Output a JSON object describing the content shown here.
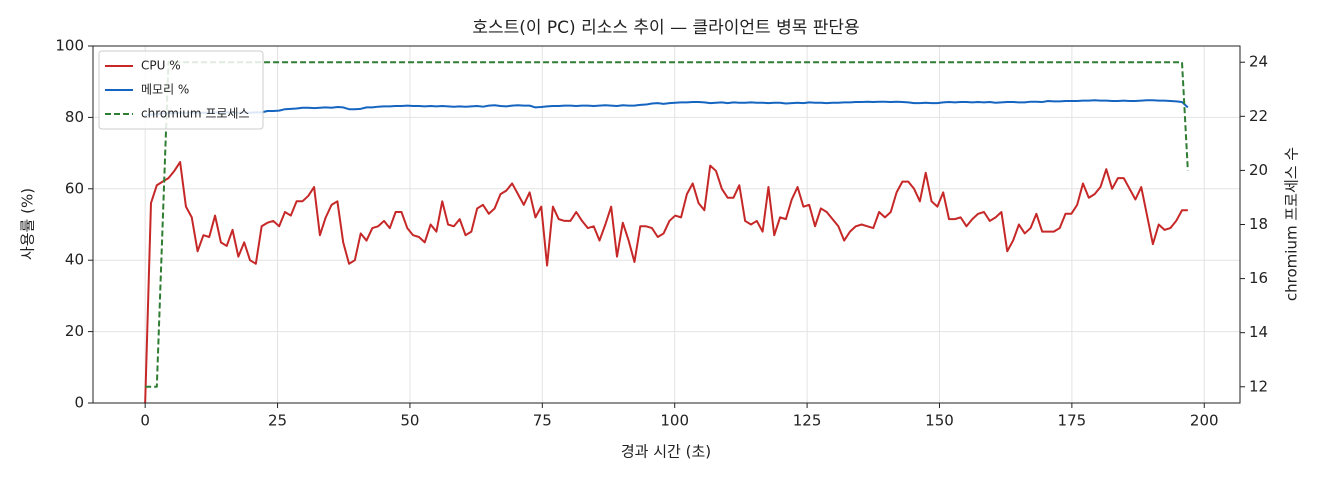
{
  "chart_data": {
    "type": "line",
    "title": "호스트(이 PC) 리소스 추이 — 클라이언트 병목 판단용",
    "x_label": "경과 시간 (초)",
    "y_label": "사용률 (%)",
    "y2_label": "chromium 프로세스 수",
    "x": [
      0,
      1.1,
      2.2,
      3.3,
      4.4,
      5.5,
      6.6,
      7.7,
      8.8,
      9.9,
      11,
      12.1,
      13.2,
      14.3,
      15.4,
      16.5,
      17.6,
      18.7,
      19.8,
      20.9,
      22,
      23.1,
      24.2,
      25.3,
      26.4,
      27.5,
      28.6,
      29.7,
      30.8,
      31.9,
      33,
      34.1,
      35.2,
      36.3,
      37.4,
      38.5,
      39.6,
      40.7,
      41.8,
      42.9,
      44,
      45.1,
      46.2,
      47.3,
      48.4,
      49.5,
      50.6,
      51.7,
      52.8,
      53.9,
      55,
      56.1,
      57.2,
      58.3,
      59.4,
      60.5,
      61.6,
      62.7,
      63.8,
      64.9,
      66,
      67.1,
      68.2,
      69.3,
      70.4,
      71.5,
      72.6,
      73.7,
      74.8,
      75.9,
      77,
      78.1,
      79.2,
      80.3,
      81.4,
      82.5,
      83.6,
      84.7,
      85.8,
      86.9,
      88,
      89.1,
      90.2,
      91.3,
      92.4,
      93.5,
      94.6,
      95.7,
      96.8,
      97.9,
      99,
      100.1,
      101.2,
      102.3,
      103.4,
      104.5,
      105.6,
      106.7,
      107.8,
      108.9,
      110,
      111.1,
      112.2,
      113.3,
      114.4,
      115.5,
      116.6,
      117.7,
      118.8,
      119.9,
      121,
      122.1,
      123.2,
      124.3,
      125.4,
      126.5,
      127.6,
      128.7,
      129.8,
      130.9,
      132,
      133.1,
      134.2,
      135.3,
      136.4,
      137.5,
      138.6,
      139.7,
      140.8,
      141.9,
      143,
      144.1,
      145.2,
      146.3,
      147.4,
      148.5,
      149.6,
      150.7,
      151.8,
      152.9,
      154,
      155.1,
      156.2,
      157.3,
      158.4,
      159.5,
      160.6,
      161.7,
      162.8,
      163.9,
      165,
      166.1,
      167.2,
      168.3,
      169.4,
      170.5,
      171.6,
      172.7,
      173.8,
      174.9,
      176,
      177.1,
      178.2,
      179.3,
      180.4,
      181.5,
      182.6,
      183.7,
      184.8,
      185.9,
      187,
      188.1,
      189.2,
      190.3,
      191.4,
      192.5,
      193.6,
      194.7,
      195.8,
      196.9
    ],
    "series": [
      {
        "name": "CPU %",
        "color": "#c62828",
        "dash": false,
        "values": [
          0,
          56,
          61,
          62,
          63,
          65,
          67.5,
          55,
          52,
          42.5,
          47,
          46.5,
          52.5,
          45,
          44,
          48.5,
          41,
          45,
          40,
          39,
          49.5,
          50.5,
          51,
          49.5,
          53.5,
          52.5,
          56.5,
          56.5,
          58,
          60.5,
          47,
          52,
          55.5,
          56.5,
          45,
          39,
          40,
          47.5,
          45.5,
          49,
          49.5,
          51,
          49,
          53.5,
          53.5,
          49,
          47,
          46.5,
          45,
          50,
          48,
          56.5,
          50,
          49.5,
          51.5,
          47,
          48,
          54.5,
          55.5,
          53,
          54.5,
          58.5,
          59.5,
          61.5,
          58.5,
          55.5,
          59,
          52,
          55,
          38.5,
          55,
          51.5,
          51,
          51,
          53.5,
          51,
          49,
          49.5,
          45.5,
          50,
          55,
          41,
          50.5,
          45.5,
          39.5,
          49.5,
          49.5,
          49,
          46.5,
          47.5,
          51,
          52.5,
          52,
          58.5,
          61.5,
          56,
          54,
          66.5,
          65,
          60,
          57.5,
          57.5,
          61,
          51,
          50,
          51,
          48,
          60.5,
          47,
          52,
          51.5,
          57,
          60.5,
          55,
          55.5,
          49.5,
          54.5,
          53.5,
          51.5,
          49.5,
          45.5,
          48,
          49.5,
          50,
          49.5,
          49,
          53.5,
          52,
          53.5,
          59,
          62,
          62,
          60,
          56.5,
          64.5,
          56.5,
          55,
          59,
          51.5,
          51.5,
          52,
          49.5,
          51.5,
          53,
          53.5,
          51,
          52,
          53.5,
          42.5,
          45.5,
          50,
          47.5,
          49,
          53,
          48,
          48,
          48,
          49,
          53,
          53,
          55.5,
          61.5,
          57.5,
          58.5,
          60.5,
          65.5,
          60,
          63,
          63,
          60,
          57,
          60.5,
          52.5,
          44.5,
          50,
          48.5,
          49,
          51,
          54,
          54
        ]
      },
      {
        "name": "메모리 %",
        "color": "#1565c0",
        "dash": false,
        "values": [
          80.6,
          80.8,
          81,
          81.1,
          81.2,
          81.2,
          81.3,
          81.3,
          81.3,
          81.3,
          81.3,
          81.3,
          81.4,
          81.3,
          81.4,
          81.4,
          81.3,
          81.4,
          81.3,
          81.4,
          81.4,
          81.8,
          81.8,
          81.9,
          82.3,
          82.4,
          82.5,
          82.7,
          82.7,
          82.6,
          82.7,
          82.8,
          82.7,
          82.9,
          82.8,
          82.3,
          82.3,
          82.4,
          82.8,
          82.8,
          83,
          83.1,
          83.1,
          83.2,
          83.2,
          83.3,
          83.2,
          83.2,
          83.1,
          83.2,
          83.1,
          83.2,
          83.1,
          83,
          83.1,
          83,
          83.1,
          83.2,
          83,
          83.3,
          83.4,
          83.2,
          83.1,
          83.3,
          83.4,
          83.3,
          83.3,
          82.8,
          82.9,
          83.1,
          83.2,
          83.2,
          83.3,
          83.3,
          83.2,
          83.3,
          83.3,
          83.2,
          83.3,
          83.4,
          83.3,
          83.2,
          83.4,
          83.3,
          83.3,
          83.5,
          83.6,
          83.9,
          84,
          83.8,
          84,
          84.1,
          84.2,
          84.2,
          84.3,
          84.3,
          84.2,
          84,
          84.1,
          84.2,
          84,
          84.2,
          84.1,
          84.1,
          84.2,
          84.1,
          84.1,
          84,
          84.1,
          84.1,
          83.9,
          84,
          84.1,
          84,
          84.2,
          84.1,
          84.1,
          84,
          84.1,
          84.1,
          84.2,
          84.2,
          84.3,
          84.3,
          84.4,
          84.3,
          84.4,
          84.4,
          84.3,
          84.4,
          84.3,
          84.2,
          84,
          84,
          84.1,
          84,
          84,
          84.2,
          84.3,
          84.2,
          84.3,
          84.3,
          84.2,
          84.3,
          84.2,
          84.3,
          84.1,
          84.2,
          84.3,
          84.3,
          84.2,
          84.2,
          84.4,
          84.4,
          84.3,
          84.6,
          84.5,
          84.5,
          84.6,
          84.6,
          84.6,
          84.7,
          84.7,
          84.8,
          84.7,
          84.7,
          84.6,
          84.6,
          84.7,
          84.6,
          84.6,
          84.7,
          84.8,
          84.8,
          84.7,
          84.7,
          84.6,
          84.5,
          84.3,
          82.8
        ]
      },
      {
        "name": "chromium 프로세스",
        "color": "#2e7d32",
        "dash": true,
        "axis": "y2",
        "values": [
          12,
          12,
          12,
          18,
          24,
          24,
          24,
          24,
          24,
          24,
          24,
          24,
          24,
          24,
          24,
          24,
          24,
          24,
          24,
          24,
          24,
          24,
          24,
          24,
          24,
          24,
          24,
          24,
          24,
          24,
          24,
          24,
          24,
          24,
          24,
          24,
          24,
          24,
          24,
          24,
          24,
          24,
          24,
          24,
          24,
          24,
          24,
          24,
          24,
          24,
          24,
          24,
          24,
          24,
          24,
          24,
          24,
          24,
          24,
          24,
          24,
          24,
          24,
          24,
          24,
          24,
          24,
          24,
          24,
          24,
          24,
          24,
          24,
          24,
          24,
          24,
          24,
          24,
          24,
          24,
          24,
          24,
          24,
          24,
          24,
          24,
          24,
          24,
          24,
          24,
          24,
          24,
          24,
          24,
          24,
          24,
          24,
          24,
          24,
          24,
          24,
          24,
          24,
          24,
          24,
          24,
          24,
          24,
          24,
          24,
          24,
          24,
          24,
          24,
          24,
          24,
          24,
          24,
          24,
          24,
          24,
          24,
          24,
          24,
          24,
          24,
          24,
          24,
          24,
          24,
          24,
          24,
          24,
          24,
          24,
          24,
          24,
          24,
          24,
          24,
          24,
          24,
          24,
          24,
          24,
          24,
          24,
          24,
          24,
          24,
          24,
          24,
          24,
          24,
          24,
          24,
          24,
          24,
          24,
          24,
          24,
          24,
          24,
          24,
          24,
          24,
          24,
          24,
          24,
          24,
          24,
          24,
          24,
          24,
          24,
          24,
          24,
          24,
          24,
          20
        ]
      }
    ],
    "xlim": [
      -9.85,
      206.75
    ],
    "xticks": [
      0,
      25,
      50,
      75,
      100,
      125,
      150,
      175,
      200
    ],
    "ylim": [
      0,
      100
    ],
    "yticks": [
      0,
      20,
      40,
      60,
      80,
      100
    ],
    "y2lim": [
      11.4,
      24.6
    ],
    "y2ticks": [
      12,
      14,
      16,
      18,
      20,
      22,
      24
    ],
    "grid": true,
    "legend": "upper left"
  }
}
